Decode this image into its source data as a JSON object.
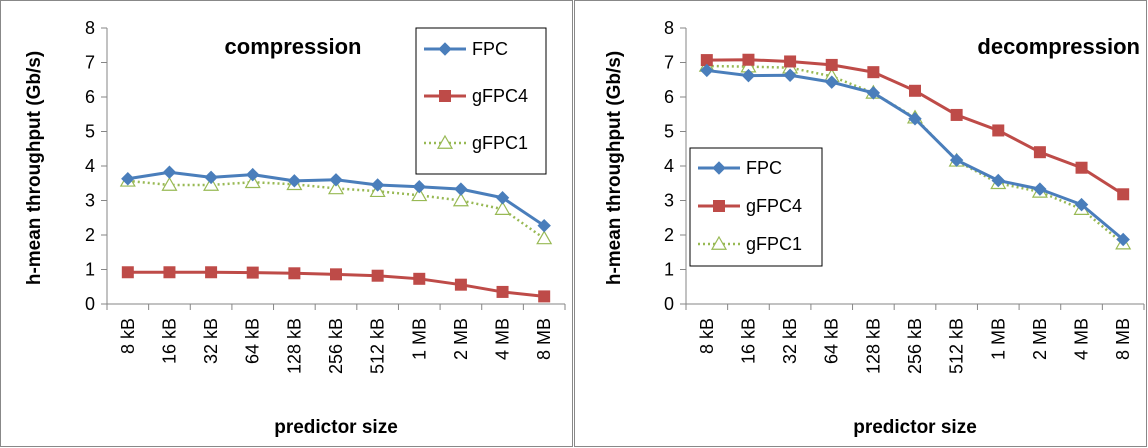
{
  "chart_data": [
    {
      "type": "line",
      "title": "compression",
      "xlabel": "predictor size",
      "ylabel": "h-mean throughput (Gb/s)",
      "ylim": [
        0,
        8
      ],
      "yticks": [
        "0",
        "1",
        "2",
        "3",
        "4",
        "5",
        "6",
        "7",
        "8"
      ],
      "categories": [
        "8 kB",
        "16 kB",
        "32 kB",
        "64 kB",
        "128 kB",
        "256 kB",
        "512 kB",
        "1 MB",
        "2 MB",
        "4 MB",
        "8 MB"
      ],
      "legend_position": "top-right",
      "grid": false,
      "series": [
        {
          "name": "FPC",
          "color": "#4a7ebb",
          "marker": "diamond",
          "style": "solid",
          "values": [
            3.63,
            3.82,
            3.67,
            3.75,
            3.57,
            3.6,
            3.45,
            3.4,
            3.33,
            3.08,
            2.27
          ]
        },
        {
          "name": "gFPC4",
          "color": "#be4b48",
          "marker": "square",
          "style": "solid",
          "values": [
            0.92,
            0.92,
            0.92,
            0.91,
            0.89,
            0.86,
            0.82,
            0.73,
            0.56,
            0.35,
            0.22
          ]
        },
        {
          "name": "gFPC1",
          "color": "#98b954",
          "marker": "triangle",
          "style": "dotted",
          "values": [
            3.57,
            3.45,
            3.45,
            3.53,
            3.47,
            3.35,
            3.27,
            3.15,
            3.0,
            2.75,
            1.9
          ]
        }
      ]
    },
    {
      "type": "line",
      "title": "decompression",
      "xlabel": "predictor size",
      "ylabel": "h-mean throughput (Gb/s)",
      "ylim": [
        0,
        8
      ],
      "yticks": [
        "0",
        "1",
        "2",
        "3",
        "4",
        "5",
        "6",
        "7",
        "8"
      ],
      "categories": [
        "8 kB",
        "16 kB",
        "32 kB",
        "64 kB",
        "128 kB",
        "256 kB",
        "512 kB",
        "1 MB",
        "2 MB",
        "4 MB",
        "8 MB"
      ],
      "legend_position": "left",
      "grid": false,
      "series": [
        {
          "name": "FPC",
          "color": "#4a7ebb",
          "marker": "diamond",
          "style": "solid",
          "values": [
            6.77,
            6.62,
            6.63,
            6.43,
            6.12,
            5.37,
            4.17,
            3.58,
            3.33,
            2.88,
            1.87
          ]
        },
        {
          "name": "gFPC4",
          "color": "#be4b48",
          "marker": "square",
          "style": "solid",
          "values": [
            7.07,
            7.08,
            7.03,
            6.93,
            6.72,
            6.18,
            5.48,
            5.03,
            4.4,
            3.95,
            3.18
          ]
        },
        {
          "name": "gFPC1",
          "color": "#98b954",
          "marker": "triangle",
          "style": "dotted",
          "values": [
            6.9,
            6.88,
            6.85,
            6.6,
            6.12,
            5.4,
            4.15,
            3.5,
            3.25,
            2.75,
            1.75
          ]
        }
      ]
    }
  ]
}
